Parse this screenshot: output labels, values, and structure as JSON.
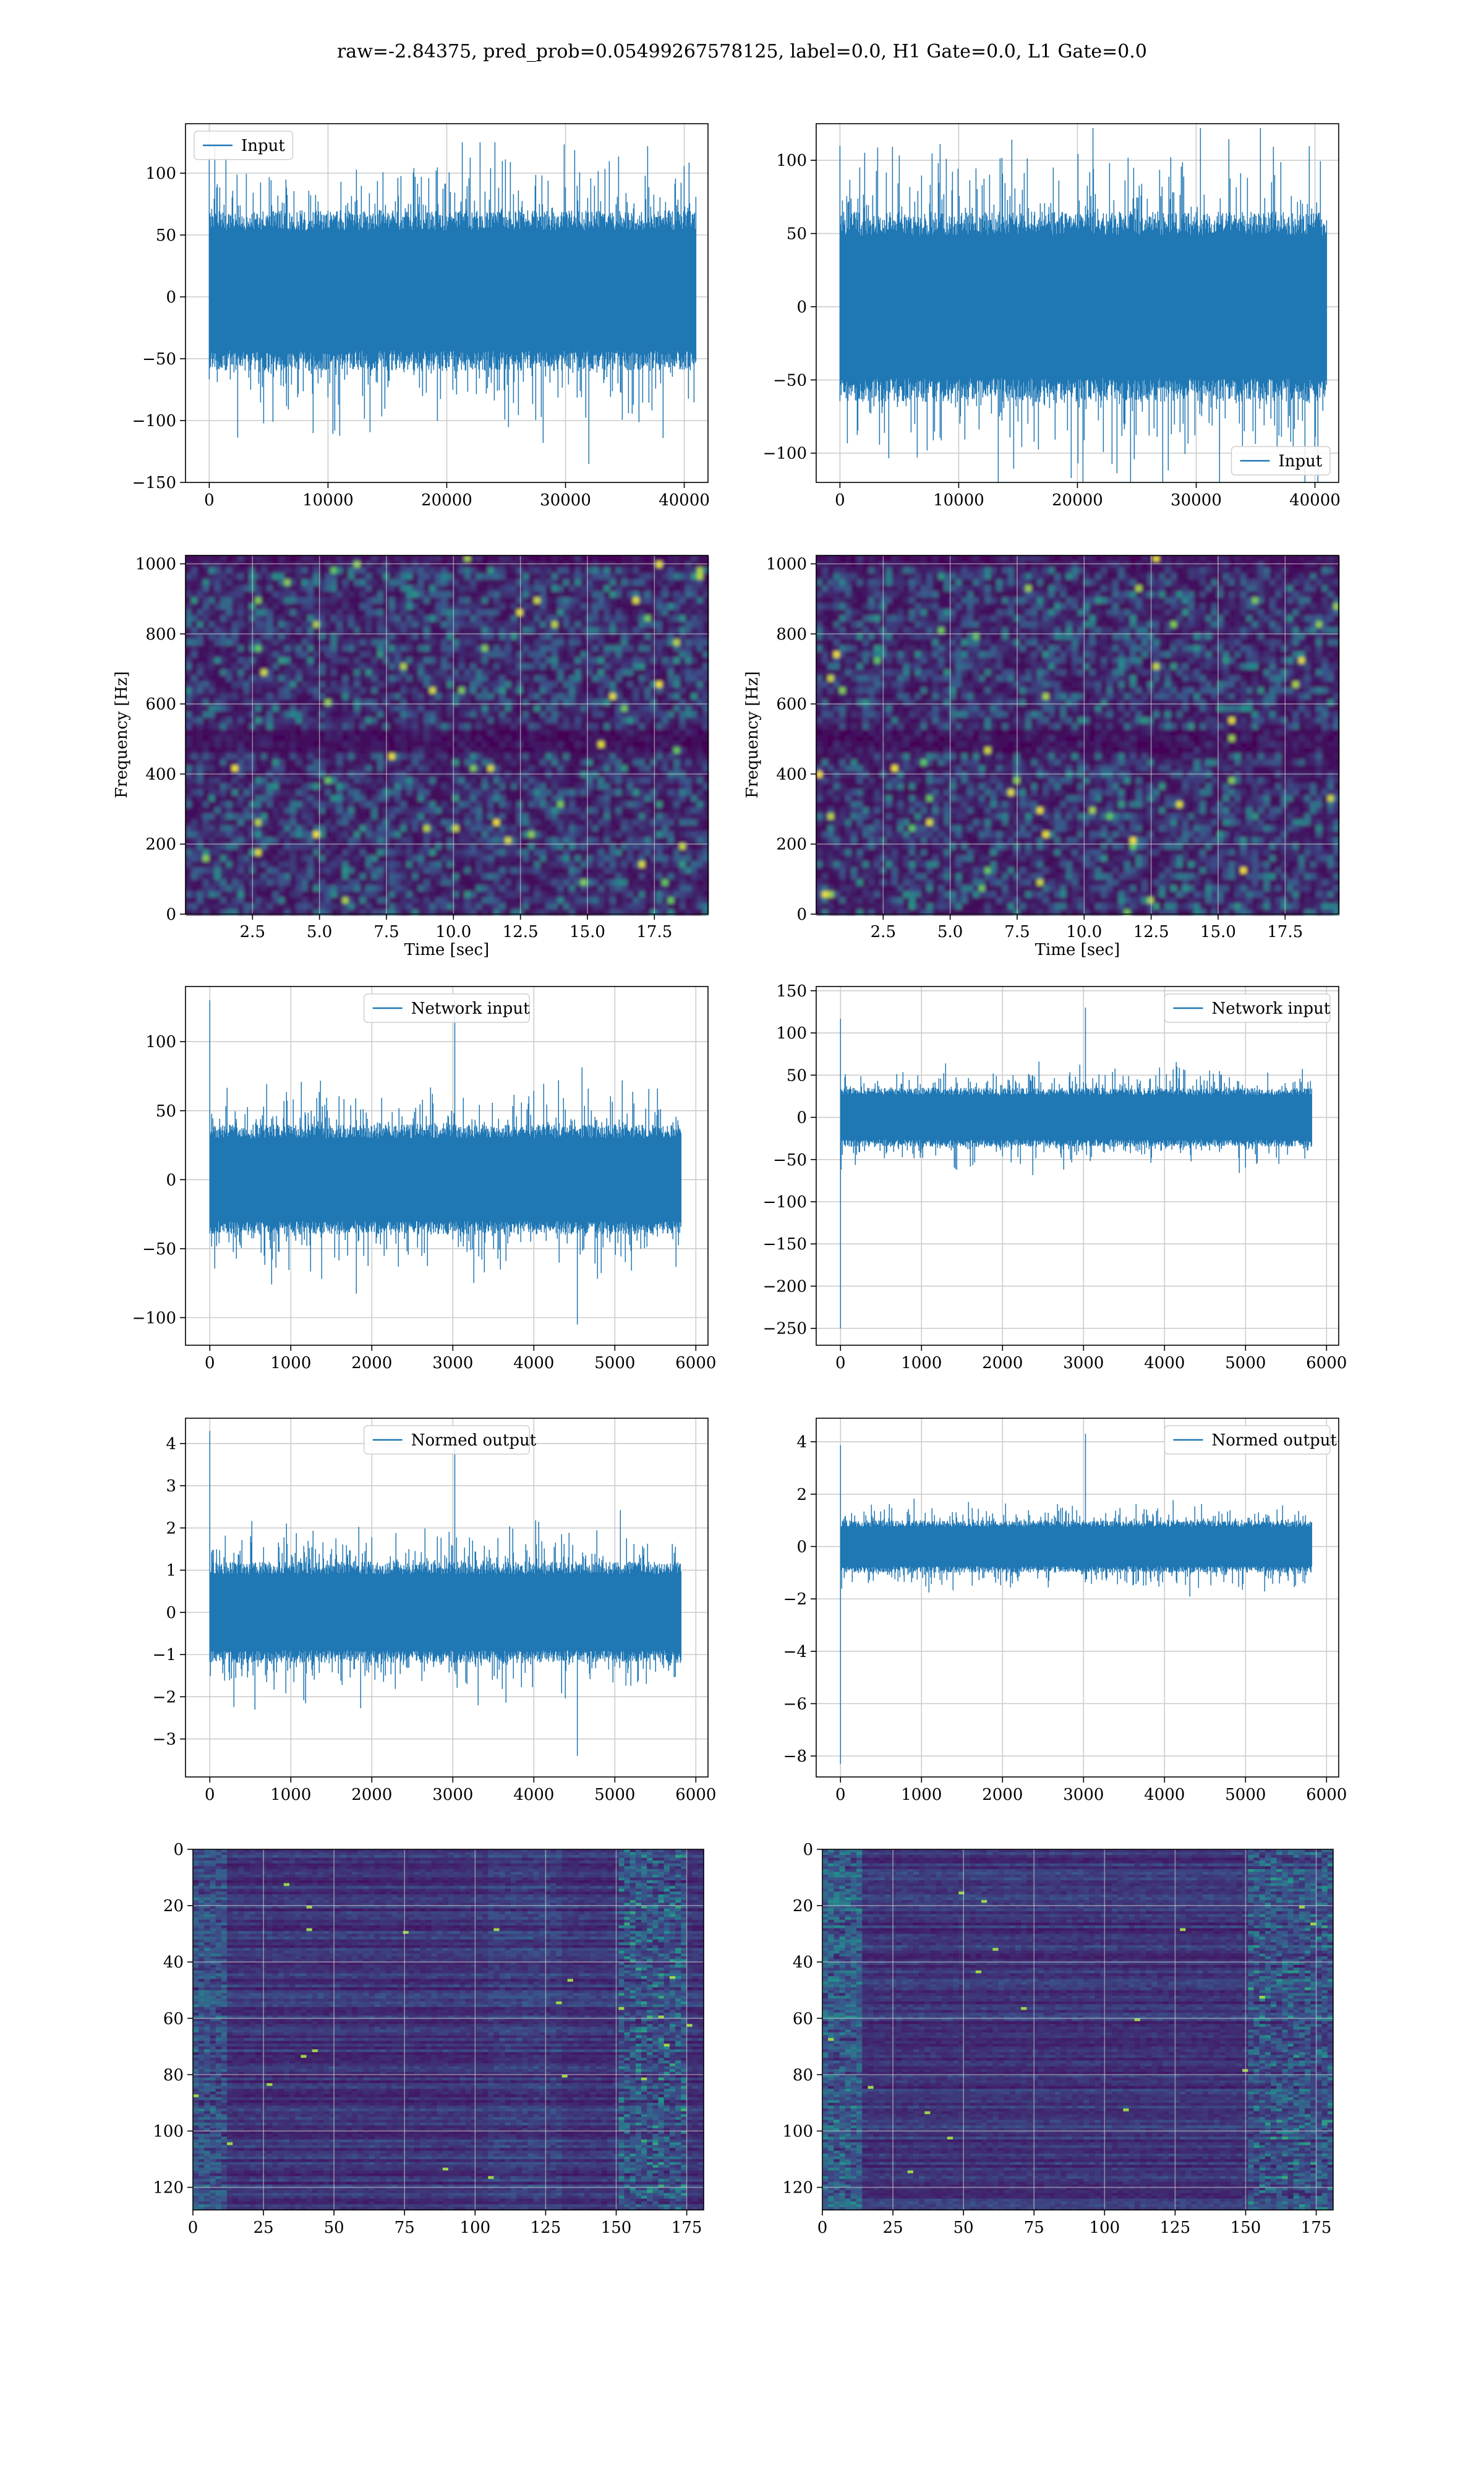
{
  "figure_title": "raw=-2.84375, pred_prob=0.05499267578125, label=0.0, H1 Gate=0.0, L1 Gate=0.0",
  "colors": {
    "line": "#1f77b4",
    "grid": "#cccccc",
    "viridis_low": "#440154",
    "viridis_mid": "#21918c",
    "viridis_high": "#fde725"
  },
  "chart_data": [
    {
      "id": "r1c1",
      "type": "line",
      "legend": "Input",
      "legend_loc": "upper left",
      "xlim": [
        -2000,
        42000
      ],
      "ylim": [
        -150,
        140
      ],
      "xticks": [
        0,
        10000,
        20000,
        30000,
        40000
      ],
      "yticks": [
        -150,
        -100,
        -50,
        0,
        50,
        100
      ],
      "n_samples": 40960,
      "band": [
        -60,
        70
      ],
      "peaks": [
        -135,
        125
      ],
      "grid": true
    },
    {
      "id": "r1c2",
      "type": "line",
      "legend": "Input",
      "legend_loc": "lower right",
      "xlim": [
        -2000,
        42000
      ],
      "ylim": [
        -120,
        125
      ],
      "xticks": [
        0,
        10000,
        20000,
        30000,
        40000
      ],
      "yticks": [
        -100,
        -50,
        0,
        50,
        100
      ],
      "n_samples": 40960,
      "band": [
        -65,
        65
      ],
      "peaks": [
        -120,
        122
      ],
      "grid": true
    },
    {
      "id": "r2c1",
      "type": "heatmap",
      "xlabel": "Time [sec]",
      "ylabel": "Frequency [Hz]",
      "xlim": [
        0,
        19.5
      ],
      "ylim": [
        0,
        1024
      ],
      "xticks": [
        "2.5",
        "5.0",
        "7.5",
        "10.0",
        "12.5",
        "15.0",
        "17.5"
      ],
      "yticks": [
        0,
        200,
        400,
        600,
        800,
        1000
      ],
      "colormap": "viridis",
      "grid": true
    },
    {
      "id": "r2c2",
      "type": "heatmap",
      "xlabel": "Time [sec]",
      "ylabel": "Frequency [Hz]",
      "xlim": [
        0,
        19.5
      ],
      "ylim": [
        0,
        1024
      ],
      "xticks": [
        "2.5",
        "5.0",
        "7.5",
        "10.0",
        "12.5",
        "15.0",
        "17.5"
      ],
      "yticks": [
        0,
        200,
        400,
        600,
        800,
        1000
      ],
      "colormap": "viridis",
      "grid": true
    },
    {
      "id": "r3c1",
      "type": "line",
      "legend": "Network input",
      "legend_loc": "upper center",
      "xlim": [
        -300,
        6150
      ],
      "ylim": [
        -120,
        140
      ],
      "xticks": [
        0,
        1000,
        2000,
        3000,
        4000,
        5000,
        6000
      ],
      "yticks": [
        -100,
        -50,
        0,
        50,
        100
      ],
      "n_samples": 5820,
      "band": [
        -40,
        40
      ],
      "peaks": [
        -105,
        130
      ],
      "grid": true
    },
    {
      "id": "r3c2",
      "type": "line",
      "legend": "Network input",
      "legend_loc": "upper right",
      "xlim": [
        -300,
        6150
      ],
      "ylim": [
        -270,
        155
      ],
      "xticks": [
        0,
        1000,
        2000,
        3000,
        4000,
        5000,
        6000
      ],
      "yticks": [
        -250,
        -200,
        -150,
        -100,
        -50,
        0,
        50,
        100,
        150
      ],
      "n_samples": 5820,
      "band": [
        -35,
        35
      ],
      "peaks": [
        -250,
        130
      ],
      "grid": true
    },
    {
      "id": "r4c1",
      "type": "line",
      "legend": "Normed output",
      "legend_loc": "upper center",
      "xlim": [
        -300,
        6150
      ],
      "ylim": [
        -3.9,
        4.6
      ],
      "xticks": [
        0,
        1000,
        2000,
        3000,
        4000,
        5000,
        6000
      ],
      "yticks": [
        -3,
        -2,
        -1,
        0,
        1,
        2,
        3,
        4
      ],
      "n_samples": 5820,
      "band": [
        -1.2,
        1.2
      ],
      "peaks": [
        -3.4,
        4.3
      ],
      "grid": true
    },
    {
      "id": "r4c2",
      "type": "line",
      "legend": "Normed output",
      "legend_loc": "upper right",
      "xlim": [
        -300,
        6150
      ],
      "ylim": [
        -8.8,
        4.9
      ],
      "xticks": [
        0,
        1000,
        2000,
        3000,
        4000,
        5000,
        6000
      ],
      "yticks": [
        -8,
        -6,
        -4,
        -2,
        0,
        2,
        4
      ],
      "n_samples": 5820,
      "band": [
        -1.0,
        1.0
      ],
      "peaks": [
        -8.3,
        4.3
      ],
      "grid": true
    },
    {
      "id": "r5c1",
      "type": "heatmap",
      "xlim": [
        0,
        181
      ],
      "ylim": [
        128,
        0
      ],
      "xticks": [
        0,
        25,
        50,
        75,
        100,
        125,
        150,
        175
      ],
      "yticks": [
        0,
        20,
        40,
        60,
        80,
        100,
        120
      ],
      "colormap": "viridis",
      "grid": true
    },
    {
      "id": "r5c2",
      "type": "heatmap",
      "xlim": [
        0,
        181
      ],
      "ylim": [
        128,
        0
      ],
      "xticks": [
        0,
        25,
        50,
        75,
        100,
        125,
        150,
        175
      ],
      "yticks": [
        0,
        20,
        40,
        60,
        80,
        100,
        120
      ],
      "colormap": "viridis",
      "grid": true
    }
  ]
}
